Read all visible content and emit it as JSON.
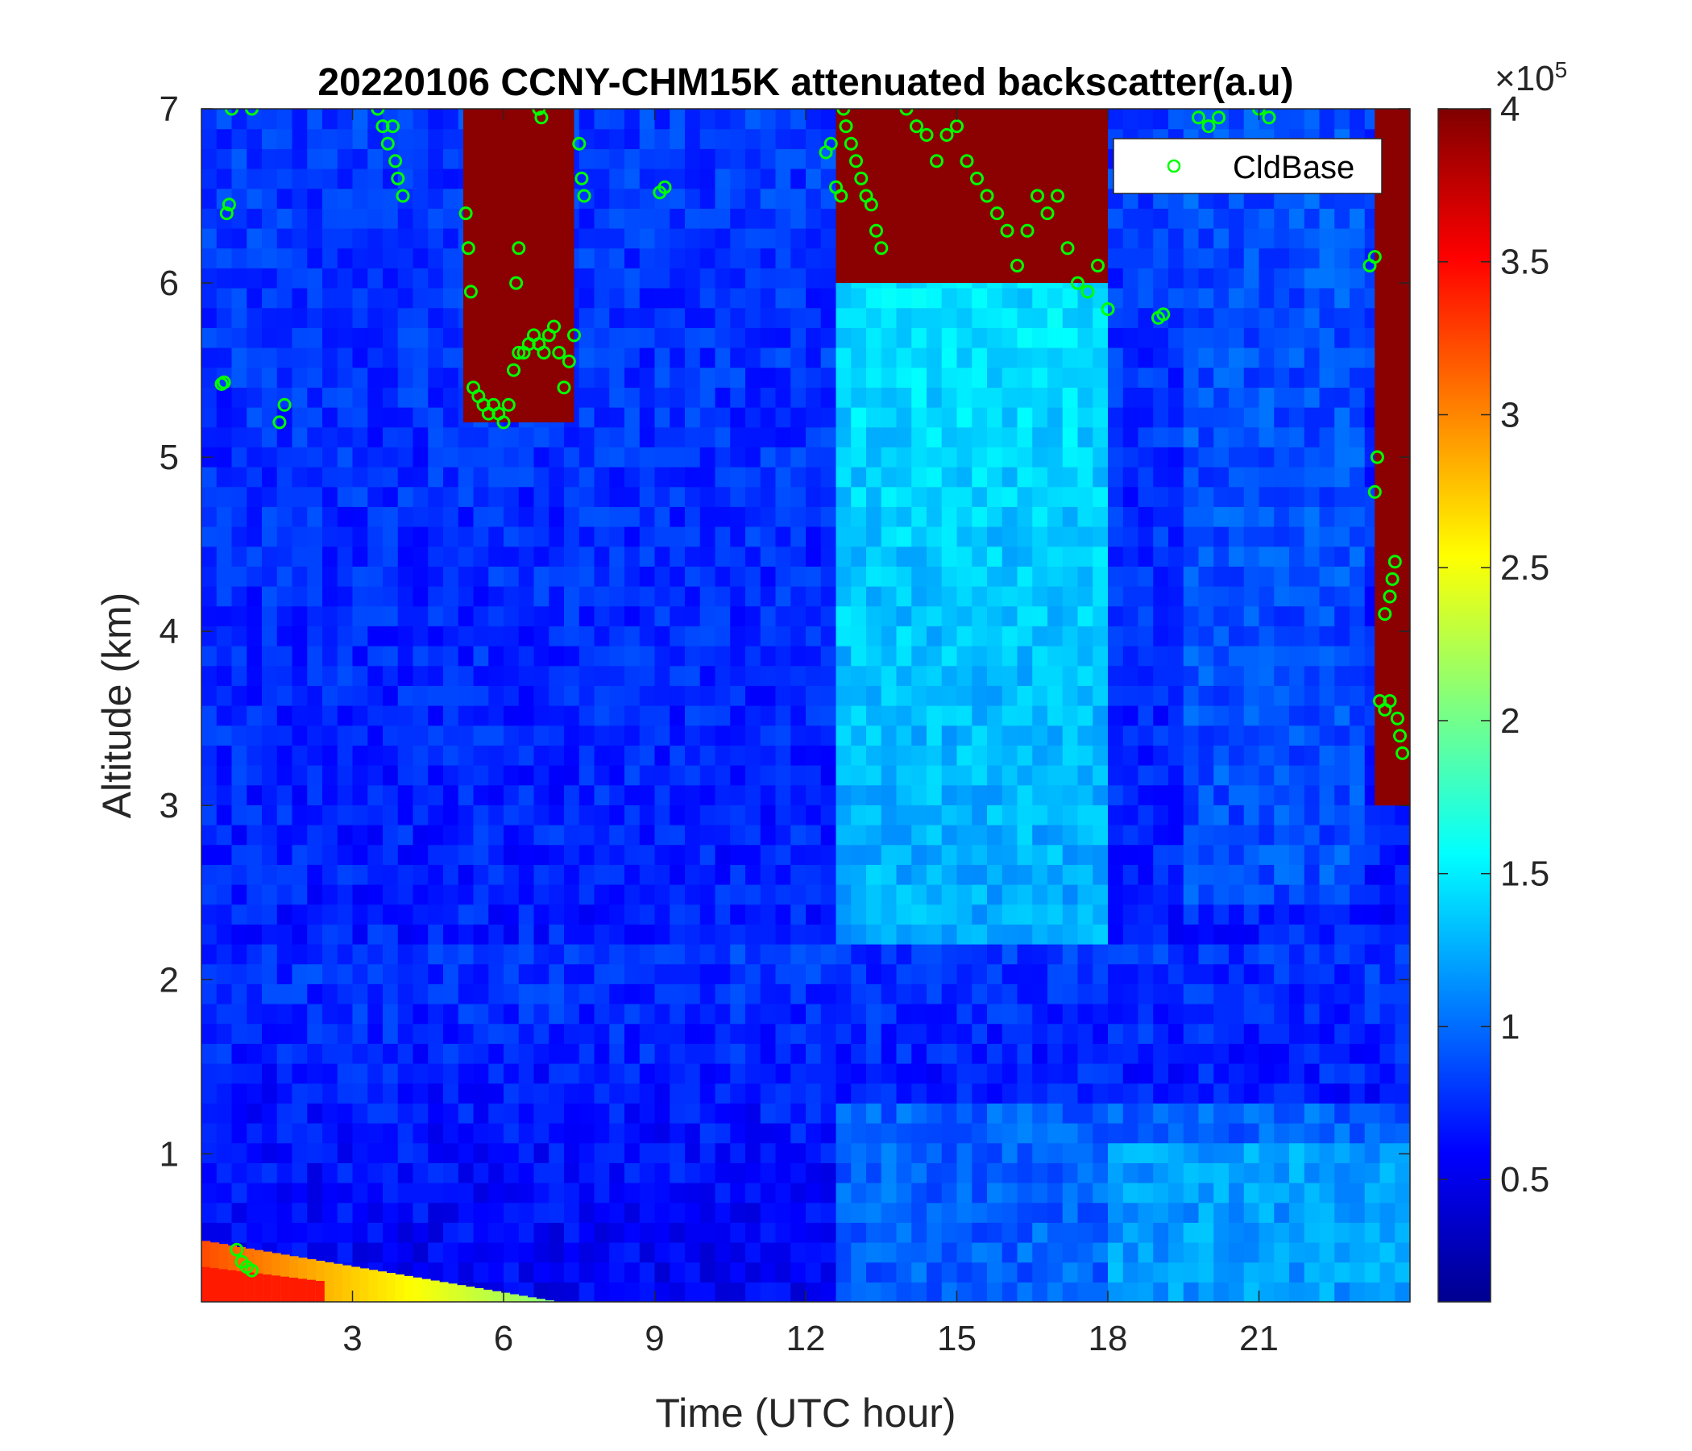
{
  "chart_data": {
    "type": "heatmap",
    "title": "20220106 CCNY-CHM15K attenuated backscatter(a.u)",
    "xlabel": "Time (UTC hour)",
    "ylabel": "Altitude (km)",
    "xlim": [
      0,
      24
    ],
    "ylim": [
      0.15,
      7
    ],
    "xticks": [
      3,
      6,
      9,
      12,
      15,
      18,
      21
    ],
    "yticks": [
      1,
      2,
      3,
      4,
      5,
      6,
      7
    ],
    "colorbar": {
      "colormap": "jet",
      "clim": [
        0.1,
        4
      ],
      "ticks": [
        0.5,
        1,
        1.5,
        2,
        2.5,
        3,
        3.5,
        4
      ],
      "ticklabels": [
        "0.5",
        "1",
        "1.5",
        "2",
        "2.5",
        "3",
        "3.5",
        "4"
      ],
      "exponent_label": "×10",
      "exponent_power": "5"
    },
    "legend": {
      "entries": [
        "CldBase"
      ],
      "placement": "top-right",
      "marker": "circle",
      "color": "#00ff00"
    },
    "cloud_regions": [
      {
        "t0": 5.2,
        "t1": 7.4,
        "z0": 5.2,
        "z1": 7.0
      },
      {
        "t0": 12.6,
        "t1": 18.0,
        "z0": 6.0,
        "z1": 7.0
      },
      {
        "t0": 23.3,
        "t1": 24.0,
        "z0": 3.0,
        "z1": 7.0
      }
    ],
    "aerosol_layer": {
      "t0": 0,
      "t1": 7,
      "z_top_start": 0.5,
      "z_top_end": 0.15
    },
    "series": [
      {
        "name": "CldBase",
        "points": [
          [
            0.6,
            7.0
          ],
          [
            0.5,
            6.4
          ],
          [
            0.55,
            6.45
          ],
          [
            0.45,
            5.43
          ],
          [
            0.4,
            5.42
          ],
          [
            1.55,
            5.2
          ],
          [
            1.65,
            5.3
          ],
          [
            1.0,
            7.0
          ],
          [
            0.7,
            0.45
          ],
          [
            0.8,
            0.38
          ],
          [
            0.9,
            0.35
          ],
          [
            1.0,
            0.33
          ],
          [
            3.5,
            7.0
          ],
          [
            3.6,
            6.9
          ],
          [
            3.7,
            6.8
          ],
          [
            3.8,
            6.9
          ],
          [
            3.85,
            6.7
          ],
          [
            3.9,
            6.6
          ],
          [
            4.0,
            6.5
          ],
          [
            5.25,
            6.4
          ],
          [
            5.3,
            6.2
          ],
          [
            5.35,
            5.95
          ],
          [
            5.4,
            5.4
          ],
          [
            5.5,
            5.35
          ],
          [
            5.6,
            5.3
          ],
          [
            5.7,
            5.25
          ],
          [
            5.8,
            5.3
          ],
          [
            5.9,
            5.25
          ],
          [
            6.0,
            5.2
          ],
          [
            6.1,
            5.3
          ],
          [
            6.2,
            5.5
          ],
          [
            6.3,
            5.6
          ],
          [
            6.4,
            5.6
          ],
          [
            6.5,
            5.65
          ],
          [
            6.6,
            5.7
          ],
          [
            6.7,
            5.65
          ],
          [
            6.8,
            5.6
          ],
          [
            6.9,
            5.7
          ],
          [
            7.0,
            5.75
          ],
          [
            7.1,
            5.6
          ],
          [
            7.2,
            5.4
          ],
          [
            7.3,
            5.55
          ],
          [
            7.4,
            5.7
          ],
          [
            6.25,
            6.0
          ],
          [
            6.3,
            6.2
          ],
          [
            6.75,
            6.95
          ],
          [
            6.7,
            7.0
          ],
          [
            7.5,
            6.8
          ],
          [
            7.55,
            6.6
          ],
          [
            7.6,
            6.5
          ],
          [
            9.1,
            6.52
          ],
          [
            9.2,
            6.55
          ],
          [
            12.4,
            6.75
          ],
          [
            12.5,
            6.8
          ],
          [
            12.6,
            6.55
          ],
          [
            12.7,
            6.5
          ],
          [
            12.75,
            7.0
          ],
          [
            12.8,
            6.9
          ],
          [
            12.9,
            6.8
          ],
          [
            13.0,
            6.7
          ],
          [
            13.1,
            6.6
          ],
          [
            13.2,
            6.5
          ],
          [
            13.3,
            6.45
          ],
          [
            13.4,
            6.3
          ],
          [
            13.5,
            6.2
          ],
          [
            14.0,
            7.0
          ],
          [
            14.2,
            6.9
          ],
          [
            14.4,
            6.85
          ],
          [
            14.6,
            6.7
          ],
          [
            14.8,
            6.85
          ],
          [
            15.0,
            6.9
          ],
          [
            15.2,
            6.7
          ],
          [
            15.4,
            6.6
          ],
          [
            15.6,
            6.5
          ],
          [
            15.8,
            6.4
          ],
          [
            16.0,
            6.3
          ],
          [
            16.2,
            6.1
          ],
          [
            16.4,
            6.3
          ],
          [
            16.6,
            6.5
          ],
          [
            16.8,
            6.4
          ],
          [
            17.0,
            6.5
          ],
          [
            17.2,
            6.2
          ],
          [
            17.4,
            6.0
          ],
          [
            17.6,
            5.95
          ],
          [
            17.8,
            6.1
          ],
          [
            18.0,
            5.85
          ],
          [
            19.0,
            5.8
          ],
          [
            19.1,
            5.82
          ],
          [
            19.8,
            6.95
          ],
          [
            20.0,
            6.9
          ],
          [
            20.2,
            6.95
          ],
          [
            21.0,
            7.0
          ],
          [
            21.2,
            6.95
          ],
          [
            23.2,
            6.1
          ],
          [
            23.3,
            6.15
          ],
          [
            23.35,
            5.0
          ],
          [
            23.3,
            4.8
          ],
          [
            23.5,
            4.1
          ],
          [
            23.6,
            4.2
          ],
          [
            23.65,
            4.3
          ],
          [
            23.7,
            4.4
          ],
          [
            23.4,
            3.6
          ],
          [
            23.5,
            3.55
          ],
          [
            23.6,
            3.6
          ],
          [
            23.75,
            3.5
          ],
          [
            23.8,
            3.4
          ],
          [
            23.85,
            3.3
          ]
        ]
      }
    ]
  }
}
